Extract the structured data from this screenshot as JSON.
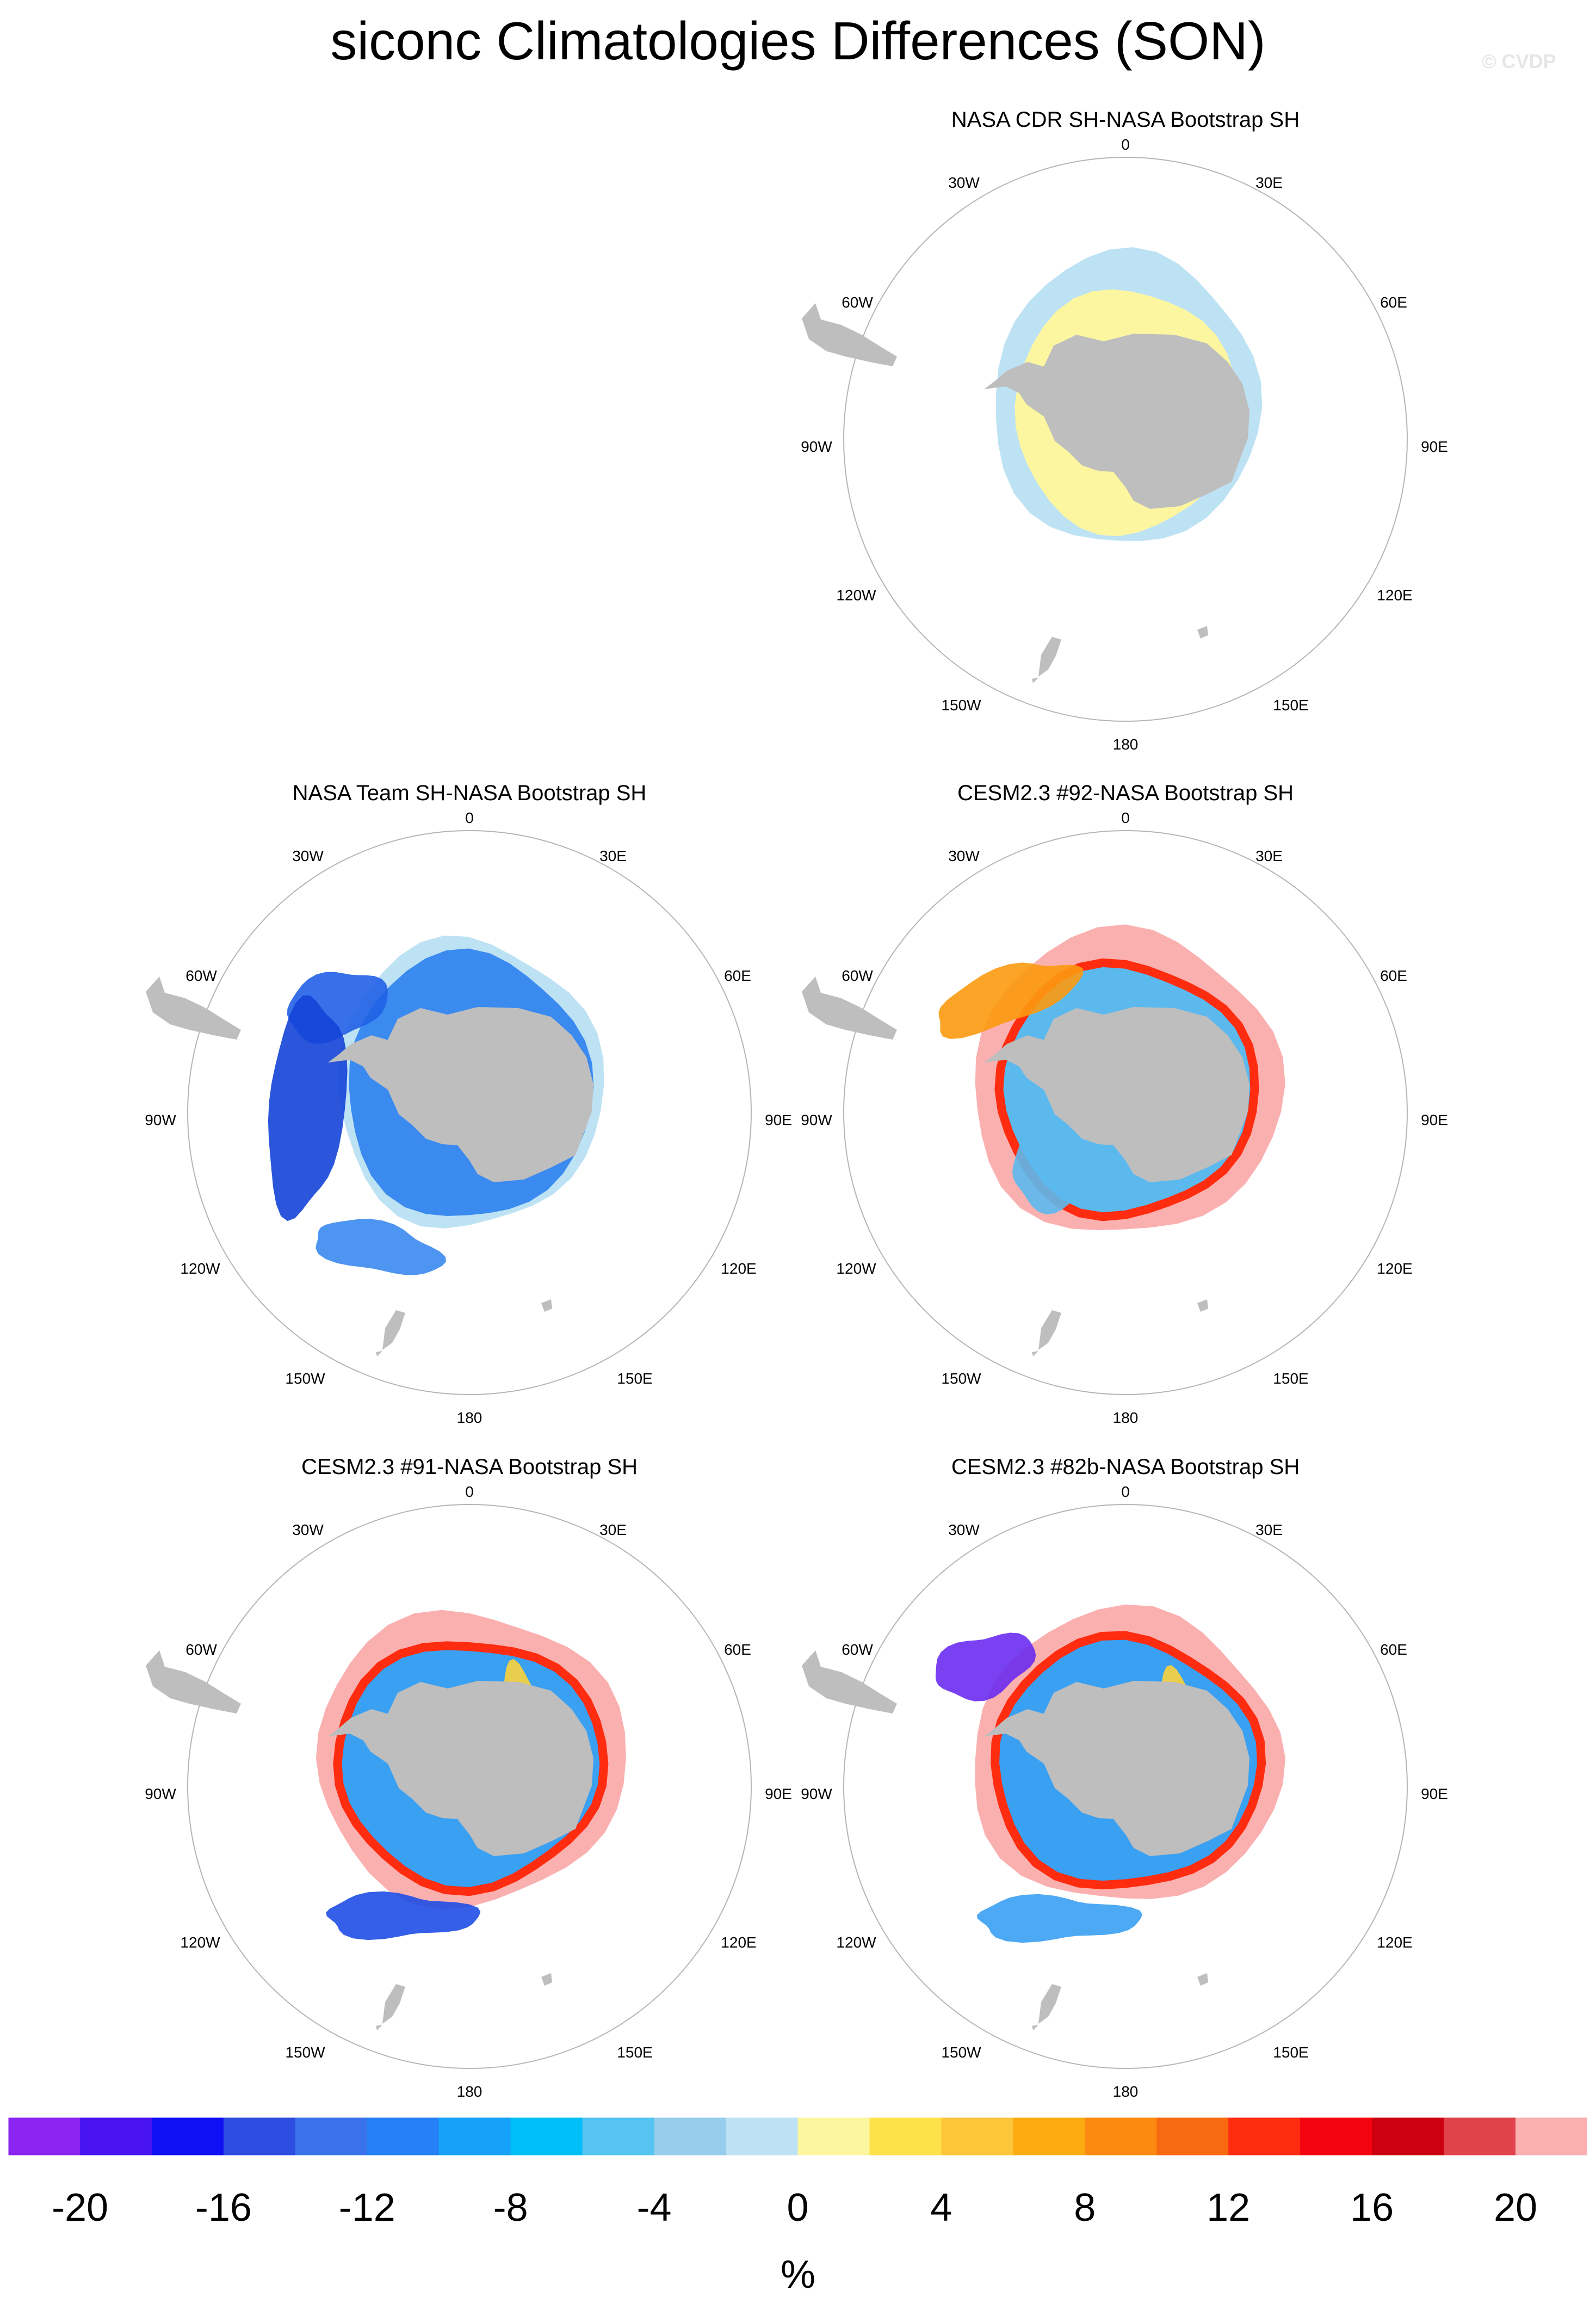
{
  "page": {
    "title": "siconc Climatologies Differences (SON)",
    "watermark": "© CVDP"
  },
  "colors": {
    "land": "#bebebe",
    "map_border": "#b5b5b5",
    "ocean": "#ffffff"
  },
  "map_labels": {
    "lon_0": "0",
    "lon_30e": "30E",
    "lon_60e": "60E",
    "lon_90e": "90E",
    "lon_120e": "120E",
    "lon_150e": "150E",
    "lon_180": "180",
    "lon_150w": "150W",
    "lon_120w": "120W",
    "lon_90w": "90W",
    "lon_60w": "60W",
    "lon_30w": "30W"
  },
  "panels": [
    {
      "id": "cdr",
      "title": "NASA CDR SH-NASA Bootstrap SH",
      "outer_color": "#bde2f4",
      "outer_value": -2,
      "inner_color": "#fdf6a1",
      "inner_value": 2,
      "features": []
    },
    {
      "id": "team",
      "title": "NASA Team SH-NASA Bootstrap SH",
      "outer_color": "#bde2f4",
      "outer_value": -2,
      "inner_color": "#3a8af0",
      "inner_value": -10,
      "features": [
        {
          "color": "#2160e6",
          "value": -14
        },
        {
          "color": "#1444d8",
          "value": -16
        }
      ]
    },
    {
      "id": "run92",
      "title": "CESM2.3 #92-NASA Bootstrap SH",
      "outer_color": "#fbb0b0",
      "outer_value": 20,
      "inner_color": "#5cb9ee",
      "inner_value": -4,
      "features": [
        {
          "color": "#ff2c10",
          "value": 14
        },
        {
          "color": "#fc9a10",
          "value": 8
        },
        {
          "color": "#2a8ef2",
          "value": -10
        }
      ]
    },
    {
      "id": "run91",
      "title": "CESM2.3 #91-NASA Bootstrap SH",
      "outer_color": "#fbb0b0",
      "outer_value": 20,
      "inner_color": "#3aa0f2",
      "inner_value": -8,
      "features": [
        {
          "color": "#ff2c10",
          "value": 14
        },
        {
          "color": "#fcd33a",
          "value": 4
        },
        {
          "color": "#1f4ee6",
          "value": -16
        }
      ]
    },
    {
      "id": "run82b",
      "title": "CESM2.3 #82b-NASA Bootstrap SH",
      "outer_color": "#fbb0b0",
      "outer_value": 20,
      "inner_color": "#3aa0f2",
      "inner_value": -8,
      "features": [
        {
          "color": "#ff2c10",
          "value": 14
        },
        {
          "color": "#fcd33a",
          "value": 4
        },
        {
          "color": "#6a2cf0",
          "value": -20
        }
      ]
    }
  ],
  "chart_data": {
    "type": "heatmap",
    "title": "siconc Climatologies Differences (SON)",
    "projection": "south polar stereographic",
    "season": "SON",
    "variable": "siconc",
    "reference": "NASA Bootstrap SH",
    "units": "%",
    "colorbar": {
      "label": "%",
      "colors": [
        "#8b24f0",
        "#4a14f2",
        "#1010f4",
        "#2d4de0",
        "#3972ea",
        "#2680f6",
        "#16a2f8",
        "#00bef8",
        "#55c4f2",
        "#97cdec",
        "#bde2f4",
        "#fdf6a1",
        "#fde24a",
        "#fdc63a",
        "#fcab10",
        "#fc8a10",
        "#f86a10",
        "#ff2c10",
        "#f40410",
        "#cc0010",
        "#e0434b",
        "#fbb0b0"
      ],
      "ticks": [
        -20,
        -16,
        -12,
        -8,
        -4,
        0,
        4,
        8,
        12,
        16,
        20
      ],
      "tick_labels": [
        "-20",
        "-16",
        "-12",
        "-8",
        "-4",
        "0",
        "4",
        "8",
        "12",
        "16",
        "20"
      ]
    },
    "panels": [
      "NASA CDR SH-NASA Bootstrap SH",
      "NASA Team SH-NASA Bootstrap SH",
      "CESM2.3 #92-NASA Bootstrap SH",
      "CESM2.3 #91-NASA Bootstrap SH",
      "CESM2.3 #82b-NASA Bootstrap SH"
    ]
  }
}
